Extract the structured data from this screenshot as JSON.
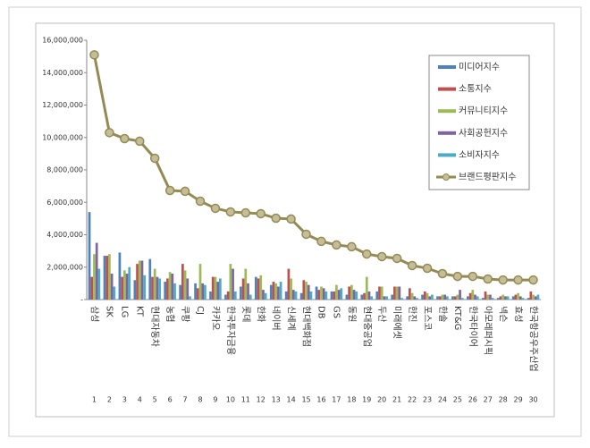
{
  "chart_data": {
    "type": "bar",
    "categories": [
      "삼성",
      "SK",
      "LG",
      "KT",
      "현대자동차",
      "농협",
      "쿠팡",
      "CJ",
      "카카오",
      "한국투자금융",
      "롯데",
      "한화",
      "네이버",
      "신세계",
      "현대백화점",
      "DB",
      "GS",
      "동원",
      "현대중공업",
      "두산",
      "미래에셋",
      "한진",
      "포스코",
      "한솔",
      "KT&G",
      "한국타이어",
      "아모레퍼시픽",
      "넥슨",
      "효성",
      "한국항공우주산업"
    ],
    "ranks": [
      1,
      2,
      3,
      4,
      5,
      6,
      7,
      8,
      9,
      10,
      11,
      12,
      13,
      14,
      15,
      16,
      17,
      18,
      19,
      20,
      21,
      22,
      23,
      24,
      25,
      26,
      27,
      28,
      29,
      30
    ],
    "series": [
      {
        "name": "미디어지수",
        "color": "#4f81bd",
        "values": [
          5400000,
          2700000,
          2900000,
          1200000,
          2500000,
          1100000,
          900000,
          1000000,
          500000,
          300000,
          800000,
          1400000,
          900000,
          500000,
          400000,
          800000,
          500000,
          300000,
          300000,
          500000,
          300000,
          200000,
          300000,
          200000,
          200000,
          200000,
          100000,
          100000,
          200000,
          100000
        ]
      },
      {
        "name": "소통지수",
        "color": "#c0504d",
        "values": [
          1400000,
          2700000,
          1400000,
          2200000,
          1400000,
          1300000,
          2200000,
          700000,
          1400000,
          500000,
          1300000,
          1300000,
          1100000,
          1900000,
          1200000,
          600000,
          500000,
          800000,
          400000,
          800000,
          800000,
          700000,
          500000,
          200000,
          200000,
          400000,
          500000,
          200000,
          300000,
          500000
        ]
      },
      {
        "name": "커뮤니티지수",
        "color": "#9bbb59",
        "values": [
          2800000,
          2800000,
          1800000,
          2400000,
          1900000,
          1700000,
          1800000,
          2200000,
          1400000,
          2200000,
          1900000,
          1500000,
          1000000,
          1300000,
          1100000,
          800000,
          900000,
          900000,
          1400000,
          800000,
          800000,
          400000,
          400000,
          300000,
          300000,
          600000,
          300000,
          300000,
          400000,
          300000
        ]
      },
      {
        "name": "사회공헌지수",
        "color": "#8064a2",
        "values": [
          3500000,
          1600000,
          1600000,
          2400000,
          1400000,
          1600000,
          1300000,
          1000000,
          1100000,
          1900000,
          1000000,
          600000,
          800000,
          600000,
          900000,
          700000,
          600000,
          600000,
          500000,
          200000,
          800000,
          200000,
          200000,
          300000,
          600000,
          300000,
          300000,
          200000,
          200000,
          200000
        ]
      },
      {
        "name": "소비자지수",
        "color": "#4bacc6",
        "values": [
          1900000,
          800000,
          2000000,
          1500000,
          1300000,
          1000000,
          200000,
          900000,
          1300000,
          500000,
          300000,
          400000,
          1100000,
          500000,
          500000,
          500000,
          700000,
          500000,
          200000,
          200000,
          100000,
          100000,
          300000,
          200000,
          100000,
          200000,
          100000,
          200000,
          100000,
          300000
        ]
      },
      {
        "name": "브랜드평판지수",
        "type": "line",
        "color": "#948a54",
        "values": [
          15100000,
          10300000,
          9930000,
          9770000,
          8720000,
          6730000,
          6680000,
          6070000,
          5630000,
          5410000,
          5350000,
          5300000,
          5020000,
          4970000,
          4030000,
          3590000,
          3370000,
          3260000,
          2810000,
          2650000,
          2540000,
          2100000,
          1930000,
          1600000,
          1430000,
          1430000,
          1270000,
          1210000,
          1210000,
          1210000
        ]
      }
    ],
    "ylim": [
      0,
      16000000
    ],
    "yticks": [
      {
        "value": 0,
        "label": "-"
      },
      {
        "value": 2000000,
        "label": "2,000,000"
      },
      {
        "value": 4000000,
        "label": "4,000,000"
      },
      {
        "value": 6000000,
        "label": "6,000,000"
      },
      {
        "value": 8000000,
        "label": "8,000,000"
      },
      {
        "value": 10000000,
        "label": "10,000,000"
      },
      {
        "value": 12000000,
        "label": "12,000,000"
      },
      {
        "value": 14000000,
        "label": "14,000,000"
      },
      {
        "value": 16000000,
        "label": "16,000,000"
      }
    ],
    "grid": false,
    "legend": "upper right"
  }
}
